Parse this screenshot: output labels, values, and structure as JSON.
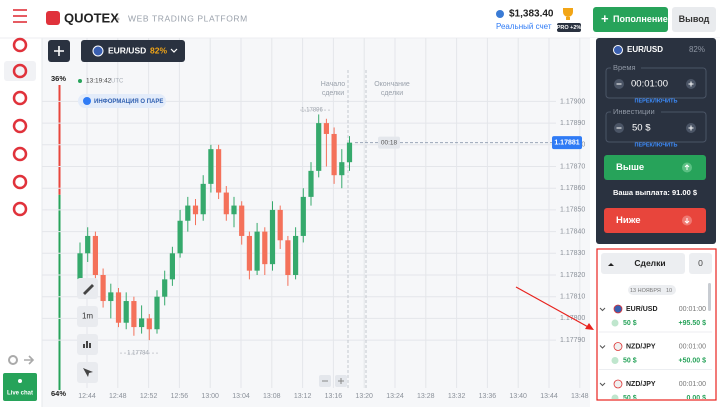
{
  "header": {
    "logo": "QUOTEX",
    "subtitle": "WEB TRADING PLATFORM",
    "balance": "$1,383.40",
    "account": "Реальный счет",
    "pro": "PRO +2%",
    "deposit": "Пополнение",
    "withdraw": "Вывод"
  },
  "sidebar": {
    "sell": {
      "value": 36,
      "label": "36%"
    },
    "buy": {
      "value": 64,
      "label": "64%"
    },
    "live_chat": "Live chat"
  },
  "chart": {
    "asset": "EUR/USD",
    "payout": "82%",
    "time": "13:19:42",
    "timezone": "UTC",
    "info": "ИНФОРМАЦИЯ О ПАРЕ",
    "trade_start": [
      "Начало",
      "сделки"
    ],
    "trade_end": [
      "Окончание",
      "сделки"
    ],
    "timeframe": "1m",
    "timer": "00:18",
    "current_price": {
      "value": 1.17881,
      "label": "1.17881"
    },
    "high_label": {
      "value": 1.17896,
      "label": "1.17896"
    },
    "low_label": {
      "value": 1.17784,
      "label": "1.17784"
    },
    "ylim": [
      1.17767,
      1.17926
    ],
    "yticks": [
      {
        "value": 1.179,
        "label": "1.17900"
      },
      {
        "value": 1.1789,
        "label": "1.17890"
      },
      {
        "value": 1.1788,
        "label": "1.17880"
      },
      {
        "value": 1.1787,
        "label": "1.17870"
      },
      {
        "value": 1.1786,
        "label": "1.17860"
      },
      {
        "value": 1.1785,
        "label": "1.17850"
      },
      {
        "value": 1.1784,
        "label": "1.17840"
      },
      {
        "value": 1.1783,
        "label": "1.17830"
      },
      {
        "value": 1.1782,
        "label": "1.17820"
      },
      {
        "value": 1.1781,
        "label": "1.17810"
      },
      {
        "value": 1.178,
        "label": "1.17800"
      },
      {
        "value": 1.1779,
        "label": "1.17790"
      }
    ],
    "xticks": [
      "12:44",
      "12:48",
      "12:52",
      "12:56",
      "13:00",
      "13:04",
      "13:08",
      "13:12",
      "13:16",
      "13:20",
      "13:24",
      "13:28",
      "13:32",
      "13:36",
      "13:40",
      "13:44",
      "13:48"
    ],
    "up_color": "#35a96c",
    "down_color": "#f4715a",
    "candles": [
      {
        "o": 1.17818,
        "h": 1.17835,
        "l": 1.17815,
        "c": 1.1783
      },
      {
        "o": 1.1783,
        "h": 1.17842,
        "l": 1.17826,
        "c": 1.17838
      },
      {
        "o": 1.17838,
        "h": 1.1784,
        "l": 1.17816,
        "c": 1.1782
      },
      {
        "o": 1.1782,
        "h": 1.17823,
        "l": 1.17805,
        "c": 1.17808
      },
      {
        "o": 1.17808,
        "h": 1.17816,
        "l": 1.178,
        "c": 1.17812
      },
      {
        "o": 1.17812,
        "h": 1.17814,
        "l": 1.17796,
        "c": 1.17798
      },
      {
        "o": 1.17798,
        "h": 1.17812,
        "l": 1.17795,
        "c": 1.17808
      },
      {
        "o": 1.17808,
        "h": 1.1781,
        "l": 1.17792,
        "c": 1.17796
      },
      {
        "o": 1.17796,
        "h": 1.17806,
        "l": 1.17793,
        "c": 1.178
      },
      {
        "o": 1.178,
        "h": 1.17802,
        "l": 1.1779,
        "c": 1.17795
      },
      {
        "o": 1.17795,
        "h": 1.17813,
        "l": 1.17793,
        "c": 1.1781
      },
      {
        "o": 1.1781,
        "h": 1.17822,
        "l": 1.17806,
        "c": 1.17818
      },
      {
        "o": 1.17818,
        "h": 1.17833,
        "l": 1.17815,
        "c": 1.1783
      },
      {
        "o": 1.1783,
        "h": 1.1785,
        "l": 1.17828,
        "c": 1.17845
      },
      {
        "o": 1.17845,
        "h": 1.17856,
        "l": 1.1784,
        "c": 1.17852
      },
      {
        "o": 1.17852,
        "h": 1.17855,
        "l": 1.17843,
        "c": 1.17848
      },
      {
        "o": 1.17848,
        "h": 1.17866,
        "l": 1.17845,
        "c": 1.17862
      },
      {
        "o": 1.17862,
        "h": 1.1788,
        "l": 1.17858,
        "c": 1.17878
      },
      {
        "o": 1.17878,
        "h": 1.1788,
        "l": 1.17855,
        "c": 1.17858
      },
      {
        "o": 1.17858,
        "h": 1.17861,
        "l": 1.17845,
        "c": 1.17848
      },
      {
        "o": 1.17848,
        "h": 1.17856,
        "l": 1.17842,
        "c": 1.17852
      },
      {
        "o": 1.17852,
        "h": 1.17854,
        "l": 1.17834,
        "c": 1.17838
      },
      {
        "o": 1.17838,
        "h": 1.1784,
        "l": 1.17818,
        "c": 1.17822
      },
      {
        "o": 1.17822,
        "h": 1.17844,
        "l": 1.1782,
        "c": 1.1784
      },
      {
        "o": 1.1784,
        "h": 1.17842,
        "l": 1.1782,
        "c": 1.17825
      },
      {
        "o": 1.17825,
        "h": 1.17854,
        "l": 1.17822,
        "c": 1.1785
      },
      {
        "o": 1.1785,
        "h": 1.17852,
        "l": 1.17832,
        "c": 1.17836
      },
      {
        "o": 1.17836,
        "h": 1.17838,
        "l": 1.17815,
        "c": 1.1782
      },
      {
        "o": 1.1782,
        "h": 1.17842,
        "l": 1.17818,
        "c": 1.17838
      },
      {
        "o": 1.17838,
        "h": 1.1786,
        "l": 1.17835,
        "c": 1.17856
      },
      {
        "o": 1.17856,
        "h": 1.17872,
        "l": 1.17852,
        "c": 1.17868
      },
      {
        "o": 1.17868,
        "h": 1.17894,
        "l": 1.17865,
        "c": 1.1789
      },
      {
        "o": 1.1789,
        "h": 1.17892,
        "l": 1.1787,
        "c": 1.17885
      },
      {
        "o": 1.17885,
        "h": 1.17888,
        "l": 1.17862,
        "c": 1.17866
      },
      {
        "o": 1.17866,
        "h": 1.17878,
        "l": 1.1786,
        "c": 1.17872
      },
      {
        "o": 1.17872,
        "h": 1.17884,
        "l": 1.17868,
        "c": 1.17881
      }
    ]
  },
  "trade_panel": {
    "asset": "EUR/USD",
    "payout": "82%",
    "time_label": "Время",
    "time_value": "00:01:00",
    "time_switch": "ПЕРЕКЛЮЧИТЬ",
    "investment_label": "Инвестиции",
    "investment_value": "50 $",
    "investment_switch": "ПЕРЕКЛЮЧИТЬ",
    "up": "Выше",
    "payout_text": "Ваша выплата: 91.00 $",
    "down": "Ниже"
  },
  "trades": {
    "tab": "Сделки",
    "count": "0",
    "date": "13 НОЯБРЯ",
    "date_count": "10",
    "items": [
      {
        "asset": "EUR/USD",
        "duration": "00:01:00",
        "amount": "50 $",
        "profit": "+95.50 $"
      },
      {
        "asset": "NZD/JPY",
        "duration": "00:01:00",
        "amount": "50 $",
        "profit": "+50.00 $"
      },
      {
        "asset": "NZD/JPY",
        "duration": "00:01:00",
        "amount": "50 $",
        "profit": "0.00 $"
      }
    ]
  }
}
